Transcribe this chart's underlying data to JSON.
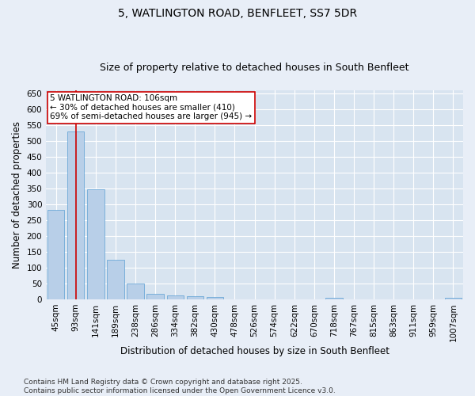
{
  "title": "5, WATLINGTON ROAD, BENFLEET, SS7 5DR",
  "subtitle": "Size of property relative to detached houses in South Benfleet",
  "xlabel": "Distribution of detached houses by size in South Benfleet",
  "ylabel": "Number of detached properties",
  "footer": "Contains HM Land Registry data © Crown copyright and database right 2025.\nContains public sector information licensed under the Open Government Licence v3.0.",
  "categories": [
    "45sqm",
    "93sqm",
    "141sqm",
    "189sqm",
    "238sqm",
    "286sqm",
    "334sqm",
    "382sqm",
    "430sqm",
    "478sqm",
    "526sqm",
    "574sqm",
    "622sqm",
    "670sqm",
    "718sqm",
    "767sqm",
    "815sqm",
    "863sqm",
    "911sqm",
    "959sqm",
    "1007sqm"
  ],
  "values": [
    283,
    530,
    348,
    125,
    50,
    17,
    12,
    10,
    8,
    0,
    0,
    0,
    0,
    0,
    6,
    0,
    0,
    0,
    0,
    0,
    6
  ],
  "bar_color": "#b8cfe8",
  "bar_edge_color": "#5a9fd4",
  "vline_x": 1.0,
  "vline_color": "#cc0000",
  "annotation_text": "5 WATLINGTON ROAD: 106sqm\n← 30% of detached houses are smaller (410)\n69% of semi-detached houses are larger (945) →",
  "annotation_box_color": "#cc0000",
  "ylim": [
    0,
    660
  ],
  "yticks": [
    0,
    50,
    100,
    150,
    200,
    250,
    300,
    350,
    400,
    450,
    500,
    550,
    600,
    650
  ],
  "bg_color": "#e8eef7",
  "plot_bg_color": "#d8e4f0",
  "grid_color": "#ffffff",
  "title_fontsize": 10,
  "subtitle_fontsize": 9,
  "label_fontsize": 8.5,
  "tick_fontsize": 7.5,
  "footer_fontsize": 6.5,
  "annotation_fontsize": 7.5
}
